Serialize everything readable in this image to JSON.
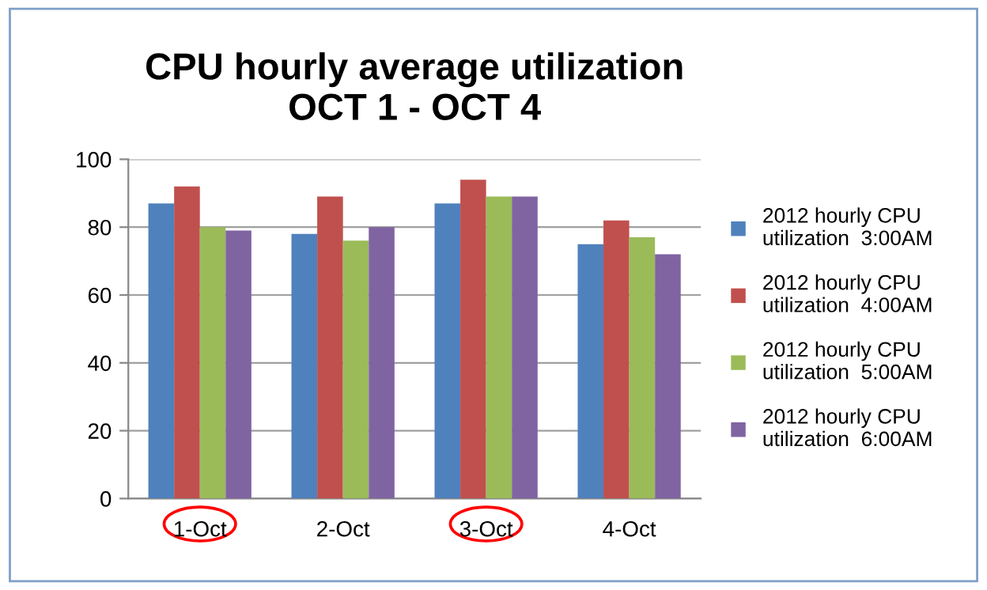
{
  "chart_data": {
    "type": "bar",
    "title": "CPU hourly average utilization\nOCT 1 - OCT 4",
    "categories": [
      "1-Oct",
      "2-Oct",
      "3-Oct",
      "4-Oct"
    ],
    "series": [
      {
        "name": "2012 hourly CPU\nutilization  3:00AM",
        "color": "#4f81bd",
        "values": [
          87,
          78,
          87,
          75
        ]
      },
      {
        "name": "2012 hourly CPU\nutilization  4:00AM",
        "color": "#c0504d",
        "values": [
          92,
          89,
          94,
          82
        ]
      },
      {
        "name": "2012 hourly CPU\nutilization  5:00AM",
        "color": "#9bbb59",
        "values": [
          80,
          76,
          89,
          77
        ]
      },
      {
        "name": "2012 hourly CPU\nutilization  6:00AM",
        "color": "#8064a2",
        "values": [
          79,
          80,
          89,
          72
        ]
      }
    ],
    "ylim": [
      0,
      100
    ],
    "yticks": [
      0,
      20,
      40,
      60,
      80,
      100
    ],
    "grid": "y",
    "legend": "right"
  }
}
